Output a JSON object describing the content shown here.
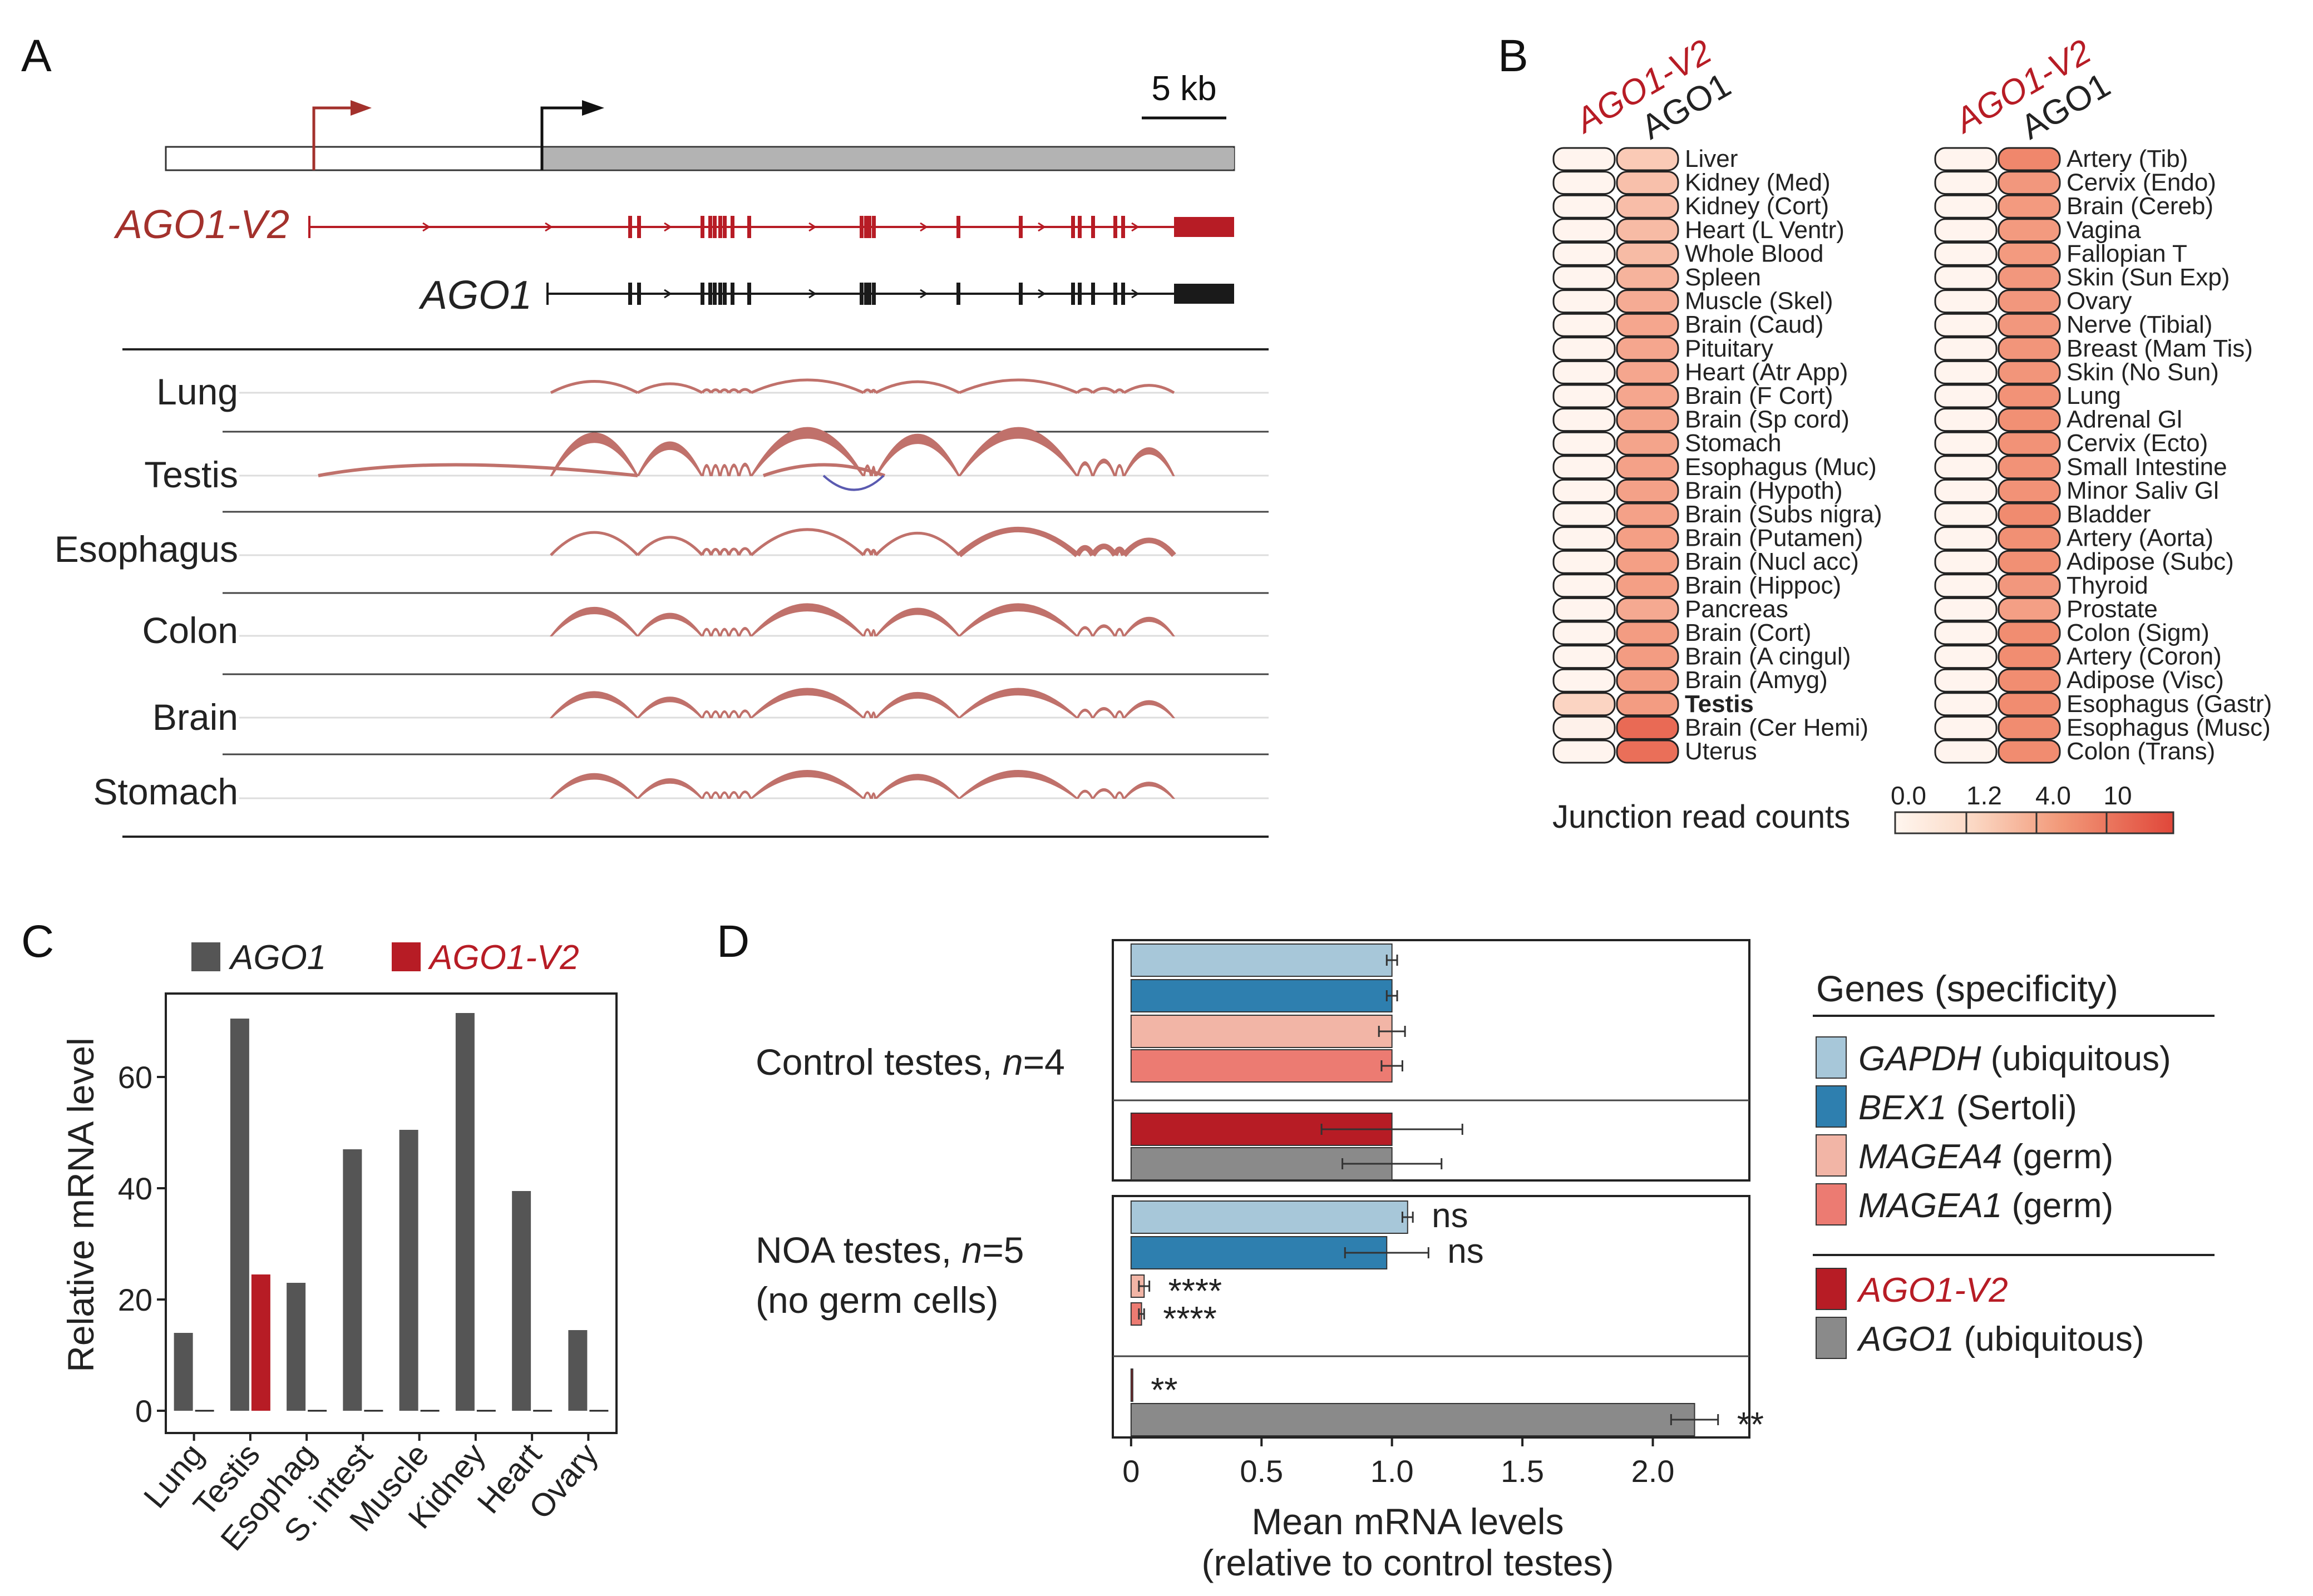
{
  "colors": {
    "ago1": "#555555",
    "ago1_v2": "#b71c25",
    "v2_label": "#a3312c",
    "sashimi": "#c0716b",
    "gapdh": "#a7c7d9",
    "bex1": "#2e7faf",
    "magea4": "#f2b5a6",
    "magea1": "#ec7b72",
    "ago1_gray": "#8a8a8a"
  },
  "panel_labels": {
    "a": "A",
    "b": "B",
    "c": "C",
    "d": "D"
  },
  "panel_a": {
    "scale_label": "5 kb",
    "isoform_v2": "AGO1-V2",
    "isoform_ago1": "AGO1",
    "tracks": [
      "Lung",
      "Testis",
      "Esophagus",
      "Colon",
      "Brain",
      "Stomach"
    ]
  },
  "panel_b": {
    "col_headers": [
      "AGO1-V2",
      "AGO1"
    ],
    "legend_title": "Junction read counts",
    "legend_ticks": [
      "0.0",
      "1.2",
      "4.0",
      "10"
    ],
    "left_tissues": [
      {
        "name": "Liver",
        "v2": 0.1,
        "ago1": 1.6
      },
      {
        "name": "Kidney (Med)",
        "v2": 0.1,
        "ago1": 2.0
      },
      {
        "name": "Kidney (Cort)",
        "v2": 0.1,
        "ago1": 2.1
      },
      {
        "name": "Heart (L Ventr)",
        "v2": 0.1,
        "ago1": 2.2
      },
      {
        "name": "Whole Blood",
        "v2": 0.1,
        "ago1": 2.2
      },
      {
        "name": "Spleen",
        "v2": 0.1,
        "ago1": 2.5
      },
      {
        "name": "Muscle (Skel)",
        "v2": 0.1,
        "ago1": 2.8
      },
      {
        "name": "Brain (Caud)",
        "v2": 0.1,
        "ago1": 3.0
      },
      {
        "name": "Pituitary",
        "v2": 0.1,
        "ago1": 3.0
      },
      {
        "name": "Heart (Atr App)",
        "v2": 0.1,
        "ago1": 3.0
      },
      {
        "name": "Brain (F Cort)",
        "v2": 0.1,
        "ago1": 3.0
      },
      {
        "name": "Brain (Sp cord)",
        "v2": 0.1,
        "ago1": 3.1
      },
      {
        "name": "Stomach",
        "v2": 0.1,
        "ago1": 3.1
      },
      {
        "name": "Esophagus (Muc)",
        "v2": 0.1,
        "ago1": 3.2
      },
      {
        "name": "Brain (Hypoth)",
        "v2": 0.1,
        "ago1": 3.2
      },
      {
        "name": "Brain (Subs nigra)",
        "v2": 0.1,
        "ago1": 3.2
      },
      {
        "name": "Brain (Putamen)",
        "v2": 0.1,
        "ago1": 3.3
      },
      {
        "name": "Brain (Nucl acc)",
        "v2": 0.1,
        "ago1": 3.3
      },
      {
        "name": "Brain (Hippoc)",
        "v2": 0.1,
        "ago1": 3.3
      },
      {
        "name": "Pancreas",
        "v2": 0.1,
        "ago1": 2.9
      },
      {
        "name": "Brain (Cort)",
        "v2": 0.1,
        "ago1": 3.4
      },
      {
        "name": "Brain (A cingul)",
        "v2": 0.1,
        "ago1": 3.4
      },
      {
        "name": "Brain (Amyg)",
        "v2": 0.1,
        "ago1": 3.4
      },
      {
        "name": "Testis",
        "v2": 1.2,
        "ago1": 3.4
      },
      {
        "name": "Brain (Cer Hemi)",
        "v2": 0.2,
        "ago1": 7.0
      },
      {
        "name": "Uterus",
        "v2": 0.1,
        "ago1": 6.5
      }
    ],
    "right_tissues": [
      {
        "name": "Artery (Tib)",
        "v2": 0.1,
        "ago1": 4.5
      },
      {
        "name": "Cervix (Endo)",
        "v2": 0.1,
        "ago1": 3.6
      },
      {
        "name": "Brain (Cereb)",
        "v2": 0.1,
        "ago1": 3.5
      },
      {
        "name": "Vagina",
        "v2": 0.1,
        "ago1": 3.5
      },
      {
        "name": "Fallopian T",
        "v2": 0.1,
        "ago1": 3.5
      },
      {
        "name": "Skin (Sun Exp)",
        "v2": 0.1,
        "ago1": 3.6
      },
      {
        "name": "Ovary",
        "v2": 0.1,
        "ago1": 3.6
      },
      {
        "name": "Nerve (Tibial)",
        "v2": 0.1,
        "ago1": 3.6
      },
      {
        "name": "Breast (Mam Tis)",
        "v2": 0.1,
        "ago1": 3.7
      },
      {
        "name": "Skin (No Sun)",
        "v2": 0.1,
        "ago1": 3.7
      },
      {
        "name": "Lung",
        "v2": 0.1,
        "ago1": 3.8
      },
      {
        "name": "Adrenal Gl",
        "v2": 0.1,
        "ago1": 3.9
      },
      {
        "name": "Cervix (Ecto)",
        "v2": 0.1,
        "ago1": 3.8
      },
      {
        "name": "Small Intestine",
        "v2": 0.1,
        "ago1": 3.8
      },
      {
        "name": "Minor Saliv Gl",
        "v2": 0.1,
        "ago1": 3.8
      },
      {
        "name": "Bladder",
        "v2": 0.1,
        "ago1": 4.2
      },
      {
        "name": "Artery (Aorta)",
        "v2": 0.1,
        "ago1": 3.9
      },
      {
        "name": "Adipose (Subc)",
        "v2": 0.1,
        "ago1": 3.9
      },
      {
        "name": "Thyroid",
        "v2": 0.1,
        "ago1": 3.6
      },
      {
        "name": "Prostate",
        "v2": 0.1,
        "ago1": 3.3
      },
      {
        "name": "Colon (Sigm)",
        "v2": 0.1,
        "ago1": 4.0
      },
      {
        "name": "Artery (Coron)",
        "v2": 0.1,
        "ago1": 4.0
      },
      {
        "name": "Adipose (Visc)",
        "v2": 0.1,
        "ago1": 4.0
      },
      {
        "name": "Esophagus (Gastr)",
        "v2": 0.1,
        "ago1": 4.1
      },
      {
        "name": "Esophagus (Musc)",
        "v2": 0.1,
        "ago1": 4.1
      },
      {
        "name": "Colon (Trans)",
        "v2": 0.1,
        "ago1": 4.1
      }
    ]
  },
  "chart_data": [
    {
      "type": "bar",
      "panel": "C",
      "categories": [
        "Lung",
        "Testis",
        "Esophag",
        "S. intest",
        "Muscle",
        "Kidney",
        "Heart",
        "Ovary"
      ],
      "series": [
        {
          "name": "AGO1",
          "values": [
            14,
            70.5,
            23,
            47,
            50.5,
            71.5,
            39.5,
            14.5
          ]
        },
        {
          "name": "AGO1-V2",
          "values": [
            0,
            24.5,
            0,
            0,
            0,
            0,
            0,
            0
          ]
        }
      ],
      "ylabel": "Relative mRNA level",
      "yticks": [
        "0",
        "20",
        "40",
        "60"
      ],
      "ylim": [
        -4,
        75
      ]
    },
    {
      "type": "bar",
      "orientation": "horizontal",
      "panel": "D",
      "groups": [
        "Control testes, n=4",
        "NOA testes, n=5 (no germ cells)"
      ],
      "group_labels": {
        "control_prefix": "Control testes, ",
        "control_n": "n",
        "control_suffix": "=4",
        "noa_prefix": "NOA testes, ",
        "noa_n": "n",
        "noa_suffix": "=5",
        "noa_sub": "(no germ cells)"
      },
      "series": [
        {
          "name": "GAPDH",
          "control": 1.0,
          "control_err": 0.02,
          "noa": 1.06,
          "noa_err": 0.02,
          "noa_sig": "ns"
        },
        {
          "name": "BEX1",
          "control": 1.0,
          "control_err": 0.02,
          "noa": 0.98,
          "noa_err": 0.16,
          "noa_sig": "ns"
        },
        {
          "name": "MAGEA4",
          "control": 1.0,
          "control_err": 0.05,
          "noa": 0.05,
          "noa_err": 0.02,
          "noa_sig": "****"
        },
        {
          "name": "MAGEA1",
          "control": 1.0,
          "control_err": 0.04,
          "noa": 0.04,
          "noa_err": 0.01,
          "noa_sig": "****"
        },
        {
          "name": "AGO1-V2",
          "control": 1.0,
          "control_err": 0.27,
          "noa": 0.003,
          "noa_err": 0.0,
          "noa_sig": "**"
        },
        {
          "name": "AGO1",
          "control": 1.0,
          "control_err": 0.19,
          "noa": 2.16,
          "noa_err": 0.09,
          "noa_sig": "**"
        }
      ],
      "xlabel": "Mean mRNA levels",
      "xlabel2": "(relative to control testes)",
      "xticks": [
        "0",
        "0.5",
        "1.0",
        "1.5",
        "2.0"
      ],
      "xlim": [
        -0.07,
        2.37
      ]
    }
  ],
  "panel_d_legend": {
    "title": "Genes (specificity)",
    "items": [
      {
        "gene": "GAPDH",
        "spec": " (ubiquitous)"
      },
      {
        "gene": "BEX1",
        "spec": " (Sertoli)"
      },
      {
        "gene": "MAGEA4",
        "spec": " (germ)"
      },
      {
        "gene": "MAGEA1",
        "spec": " (germ)"
      },
      {
        "gene": "AGO1-V2",
        "spec": ""
      },
      {
        "gene": "AGO1",
        "spec": " (ubiquitous)"
      }
    ]
  }
}
